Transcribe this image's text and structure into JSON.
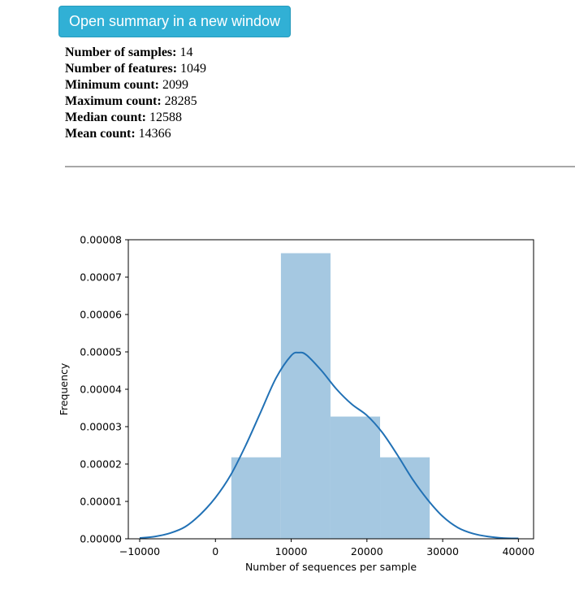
{
  "open_button_label": "Open summary in a new window",
  "summary": [
    {
      "label": "Number of samples:",
      "value": "14"
    },
    {
      "label": "Number of features:",
      "value": "1049"
    },
    {
      "label": "Minimum count:",
      "value": "2099"
    },
    {
      "label": "Maximum count:",
      "value": "28285"
    },
    {
      "label": "Median count:",
      "value": "12588"
    },
    {
      "label": "Mean count:",
      "value": "14366"
    }
  ],
  "chart_data": {
    "type": "bar",
    "xlabel": "Number of sequences per sample",
    "ylabel": "Frequency",
    "xlim": [
      -11500,
      42000
    ],
    "ylim": [
      0,
      8e-05
    ],
    "x_ticks": [
      "−10000",
      "0",
      "10000",
      "20000",
      "30000",
      "40000"
    ],
    "x_tick_values": [
      -10000,
      0,
      10000,
      20000,
      30000,
      40000
    ],
    "y_ticks": [
      "0.00000",
      "0.00001",
      "0.00002",
      "0.00003",
      "0.00004",
      "0.00005",
      "0.00006",
      "0.00007",
      "0.00008"
    ],
    "y_tick_values": [
      0,
      1e-05,
      2e-05,
      3e-05,
      4e-05,
      5e-05,
      6e-05,
      7e-05,
      8e-05
    ],
    "bins": [
      {
        "x0": 2099,
        "x1": 8646,
        "density": 2.18e-05
      },
      {
        "x0": 8646,
        "x1": 15192,
        "density": 7.64e-05
      },
      {
        "x0": 15192,
        "x1": 21739,
        "density": 3.27e-05
      },
      {
        "x0": 21739,
        "x1": 28285,
        "density": 2.18e-05
      }
    ],
    "kde": {
      "x": [
        -10000,
        -8000,
        -6000,
        -4000,
        -2000,
        0,
        2000,
        4000,
        6000,
        8000,
        10000,
        11000,
        12000,
        14000,
        16000,
        18000,
        20000,
        22000,
        24000,
        26000,
        28000,
        30000,
        32000,
        34000,
        36000,
        38000,
        40000
      ],
      "y": [
        2e-07,
        6e-07,
        1.5e-06,
        3.2e-06,
        6.5e-06,
        1.1e-05,
        1.7e-05,
        2.5e-05,
        3.4e-05,
        4.3e-05,
        4.9e-05,
        4.98e-05,
        4.92e-05,
        4.5e-05,
        4e-05,
        3.6e-05,
        3.3e-05,
        2.85e-05,
        2.25e-05,
        1.6e-05,
        1.05e-05,
        6e-06,
        3e-06,
        1.4e-06,
        6e-07,
        2e-07,
        1e-07
      ]
    },
    "bar_color": "#a5c8e1",
    "line_color": "#2171b5",
    "grid": false
  }
}
